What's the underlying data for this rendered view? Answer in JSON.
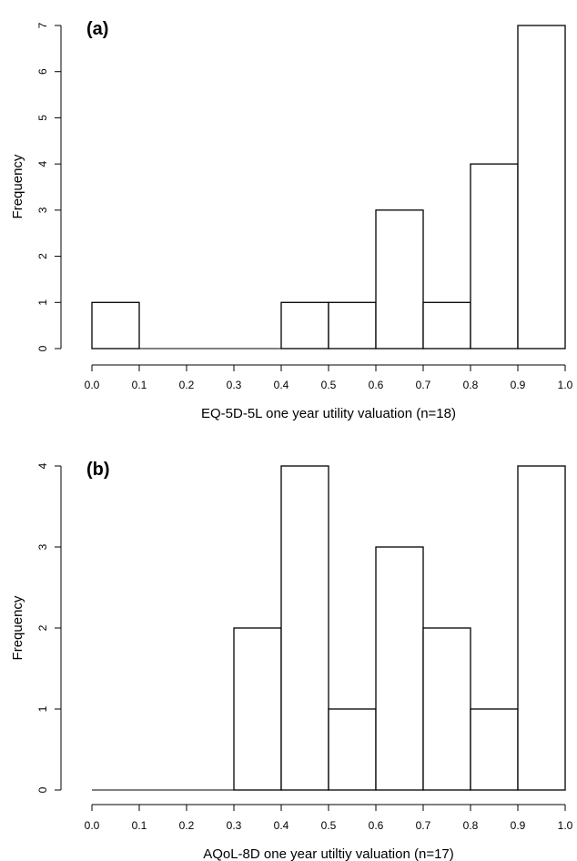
{
  "chart_data": [
    {
      "type": "bar",
      "panel_label": "(a)",
      "xlabel": "EQ-5D-5L one year utility valuation (n=18)",
      "ylabel": "Frequency",
      "bin_edges": [
        0.0,
        0.1,
        0.2,
        0.3,
        0.4,
        0.5,
        0.6,
        0.7,
        0.8,
        0.9,
        1.0
      ],
      "values": [
        1,
        0,
        0,
        0,
        1,
        1,
        3,
        1,
        4,
        7
      ],
      "xticks": [
        "0.0",
        "0.1",
        "0.2",
        "0.3",
        "0.4",
        "0.5",
        "0.6",
        "0.7",
        "0.8",
        "0.9",
        "1.0"
      ],
      "yticks": [
        "0",
        "1",
        "2",
        "3",
        "4",
        "5",
        "6",
        "7"
      ],
      "xlim": [
        0,
        1
      ],
      "ylim": [
        0,
        7
      ]
    },
    {
      "type": "bar",
      "panel_label": "(b)",
      "xlabel": "AQoL-8D one year utiltiy valuation (n=17)",
      "ylabel": "Frequency",
      "bin_edges": [
        0.0,
        0.1,
        0.2,
        0.3,
        0.4,
        0.5,
        0.6,
        0.7,
        0.8,
        0.9,
        1.0
      ],
      "values": [
        0,
        0,
        0,
        2,
        4,
        1,
        3,
        2,
        1,
        4
      ],
      "xticks": [
        "0.0",
        "0.1",
        "0.2",
        "0.3",
        "0.4",
        "0.5",
        "0.6",
        "0.7",
        "0.8",
        "0.9",
        "1.0"
      ],
      "yticks": [
        "0",
        "1",
        "2",
        "3",
        "4"
      ],
      "xlim": [
        0,
        1
      ],
      "ylim": [
        0,
        4
      ]
    }
  ]
}
